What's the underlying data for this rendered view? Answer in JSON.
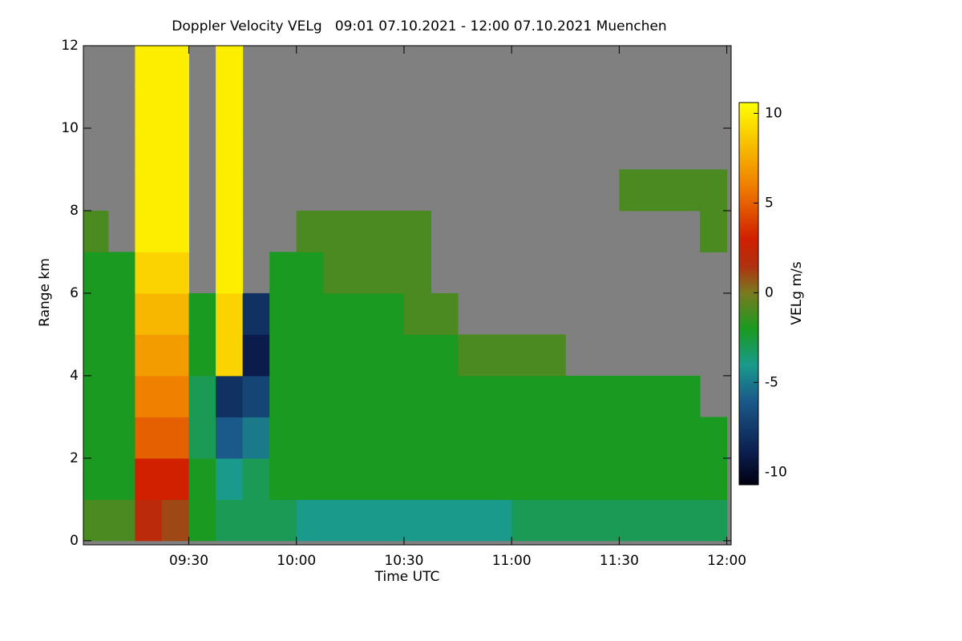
{
  "chart_data": {
    "type": "heatmap",
    "title": "Doppler Velocity VELg   09:01 07.10.2021 - 12:00 07.10.2021 Muenchen",
    "x_label": "Time UTC",
    "y_label": "Range km",
    "colorbar_label": "VELg m/s",
    "xlim": [
      9.01,
      12.02
    ],
    "ylim": [
      -0.1,
      12
    ],
    "clim": [
      -10.7,
      10.6
    ],
    "xticks": [
      {
        "value": 9.5,
        "label": "09:30"
      },
      {
        "value": 10,
        "label": "10:00"
      },
      {
        "value": 10.5,
        "label": "10:30"
      },
      {
        "value": 11,
        "label": "11:00"
      },
      {
        "value": 11.5,
        "label": "11:30"
      },
      {
        "value": 12,
        "label": "12:00"
      }
    ],
    "yticks": [
      0,
      2,
      4,
      6,
      8,
      10,
      12
    ],
    "cticks": [
      -10,
      -5,
      0,
      5,
      10
    ],
    "nodata_color": "#808080",
    "colorscale": [
      [
        -10.7,
        "#000010"
      ],
      [
        -9,
        "#0b1c4c"
      ],
      [
        -6,
        "#1a5a8a"
      ],
      [
        -4,
        "#1a9a8a"
      ],
      [
        -2,
        "#1a9a20"
      ],
      [
        0,
        "#7a7a20"
      ],
      [
        1.5,
        "#b03010"
      ],
      [
        3,
        "#d02000"
      ],
      [
        6,
        "#f08000"
      ],
      [
        10.6,
        "#ffff00"
      ]
    ],
    "x": [
      9.0625,
      9.1875,
      9.3125,
      9.4375,
      9.5625,
      9.6875,
      9.8125,
      9.9375,
      10.0625,
      10.1875,
      10.3125,
      10.4375,
      10.5625,
      10.6875,
      10.8125,
      10.9375,
      11.0625,
      11.1875,
      11.3125,
      11.4375,
      11.5625,
      11.6875,
      11.8125,
      11.9375
    ],
    "y": [
      0.5,
      1.5,
      2.5,
      3.5,
      4.5,
      5.5,
      6.5,
      7.5,
      8.5,
      9.5,
      10.5,
      11.5
    ],
    "z": [
      [
        -1,
        -1,
        2,
        1,
        -2,
        -3,
        -3,
        -3,
        -4,
        -4,
        -4,
        -4,
        -4,
        -4,
        -4,
        -4,
        -3,
        -3,
        -3,
        -3,
        -3,
        -3,
        -3,
        -3
      ],
      [
        -2,
        -2,
        3,
        3,
        -2,
        -4,
        -3,
        -2,
        -2,
        -2,
        -2,
        -2,
        -2,
        -2,
        -2,
        -2,
        -2,
        -2,
        -2,
        -2,
        -2,
        -2,
        -2,
        -2
      ],
      [
        -2,
        -2,
        5,
        5,
        -3,
        -6,
        -5,
        -2,
        -2,
        -2,
        -2,
        -2,
        -2,
        -2,
        -2,
        -2,
        -2,
        -2,
        -2,
        -2,
        -2,
        -2,
        -2,
        -2
      ],
      [
        -2,
        -2,
        6,
        6,
        -3,
        -8,
        -7,
        -2,
        -2,
        -2,
        -2,
        -2,
        -2,
        -2,
        -2,
        -2,
        -2,
        -2,
        -2,
        -2,
        -2,
        -2,
        -2,
        null
      ],
      [
        -2,
        -2,
        7,
        7,
        -2,
        9,
        -9,
        -2,
        -2,
        -2,
        -2,
        -2,
        -2,
        -2,
        -1,
        -1,
        -1,
        -1,
        null,
        null,
        null,
        null,
        null,
        null
      ],
      [
        -2,
        -2,
        8,
        8,
        -2,
        9,
        -8,
        -2,
        -2,
        -2,
        -2,
        -2,
        -1,
        -1,
        null,
        null,
        null,
        null,
        null,
        null,
        null,
        null,
        null,
        null
      ],
      [
        -2,
        -2,
        9,
        9,
        null,
        10,
        null,
        -2,
        -2,
        -1,
        -1,
        -1,
        -1,
        null,
        null,
        null,
        null,
        null,
        null,
        null,
        null,
        null,
        null,
        null
      ],
      [
        -1,
        null,
        10,
        10,
        null,
        10,
        null,
        null,
        -1,
        -1,
        -1,
        -1,
        -1,
        null,
        null,
        null,
        null,
        null,
        null,
        null,
        null,
        null,
        null,
        -1
      ],
      [
        null,
        null,
        10,
        10,
        null,
        10,
        null,
        null,
        null,
        null,
        null,
        null,
        null,
        null,
        null,
        null,
        null,
        null,
        null,
        null,
        -1,
        -1,
        -1,
        -1
      ],
      [
        null,
        null,
        10,
        10,
        null,
        10,
        null,
        null,
        null,
        null,
        null,
        null,
        null,
        null,
        null,
        null,
        null,
        null,
        null,
        null,
        null,
        null,
        null,
        null
      ],
      [
        null,
        null,
        10,
        10,
        null,
        10,
        null,
        null,
        null,
        null,
        null,
        null,
        null,
        null,
        null,
        null,
        null,
        null,
        null,
        null,
        null,
        null,
        null,
        null
      ],
      [
        null,
        null,
        10,
        10,
        null,
        10,
        null,
        null,
        null,
        null,
        null,
        null,
        null,
        null,
        null,
        null,
        null,
        null,
        null,
        null,
        null,
        null,
        null,
        null
      ]
    ]
  }
}
